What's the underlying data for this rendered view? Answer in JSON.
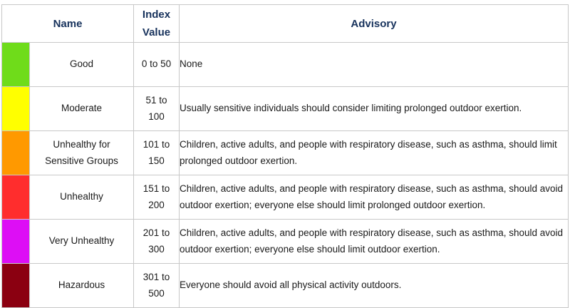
{
  "header": {
    "name": "Name",
    "index_value": "Index Value",
    "advisory": "Advisory"
  },
  "rows": [
    {
      "color": "#6fdc1a",
      "name": "Good",
      "index": "0 to 50",
      "advisory": "None"
    },
    {
      "color": "#ffff00",
      "name": "Moderate",
      "index": "51 to 100",
      "advisory": "Usually sensitive individuals should consider limiting prolonged outdoor exertion."
    },
    {
      "color": "#ff9900",
      "name": "Unhealthy for Sensitive Groups",
      "index": "101 to 150",
      "advisory": "Children, active adults, and people with respiratory disease, such as asthma, should limit prolonged outdoor exertion."
    },
    {
      "color": "#ff2d2d",
      "name": "Unhealthy",
      "index": "151 to 200",
      "advisory": "Children, active adults, and people with respiratory disease, such as asthma, should avoid outdoor exertion; everyone else should limit prolonged outdoor exertion."
    },
    {
      "color": "#dd0ef5",
      "name": "Very Unhealthy",
      "index": "201 to 300",
      "advisory": "Children, active adults, and people with respiratory disease, such as asthma, should avoid outdoor exertion; everyone else should limit outdoor exertion."
    },
    {
      "color": "#8b0011",
      "name": "Hazardous",
      "index": "301 to 500",
      "advisory": "Everyone should avoid all physical activity outdoors."
    }
  ]
}
